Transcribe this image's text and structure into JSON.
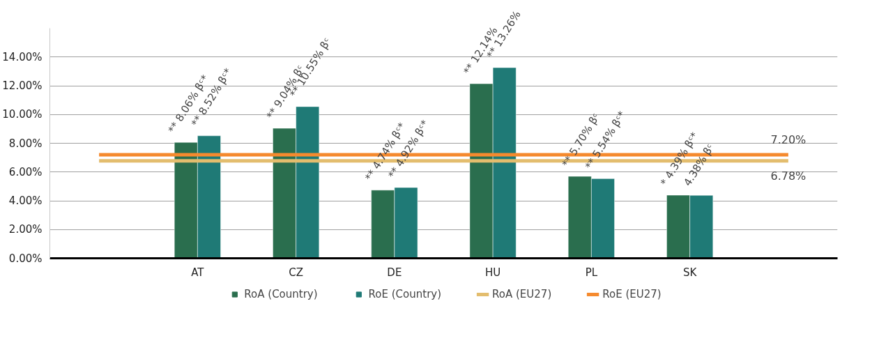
{
  "chart_data": {
    "type": "bar",
    "categories": [
      null,
      "AT",
      "CZ",
      "DE",
      "HU",
      "PL",
      "SK",
      null
    ],
    "series": [
      {
        "name": "RoA (Country)",
        "color": "#2a6e4e",
        "values": [
          null,
          8.06,
          9.04,
          4.74,
          12.14,
          5.7,
          4.39,
          null
        ],
        "value_labels": [
          null,
          "** 8.06% βᶜ*",
          "** 9.04% βᶜ",
          "** 4.74% βᶜ*",
          "** 12.14%",
          "** 5.70% βᶜ",
          "* 4.39% βᶜ*",
          null
        ]
      },
      {
        "name": "RoE (Country)",
        "color": "#1f7a76",
        "values": [
          null,
          8.52,
          10.55,
          4.92,
          13.26,
          5.54,
          4.38,
          null
        ],
        "value_labels": [
          null,
          "** 8.52% βᶜ*",
          "** 10.55% βᶜ",
          "** 4.92% βᶜ*",
          "** 13.26%",
          "** 5.54% βᶜ*",
          "4.38% βᶜ",
          null
        ]
      },
      {
        "name": "RoA (EU27)",
        "type": "line",
        "color": "#e3bd6e",
        "values": [
          6.78,
          6.78,
          6.78,
          6.78,
          6.78,
          6.78,
          6.78,
          6.78
        ],
        "value_labels": [
          null,
          null,
          null,
          null,
          null,
          null,
          null,
          "6.78%"
        ]
      },
      {
        "name": "RoE (EU27)",
        "type": "line",
        "color": "#f58a2e",
        "values": [
          7.2,
          7.2,
          7.2,
          7.2,
          7.2,
          7.2,
          7.2,
          7.2
        ],
        "value_labels": [
          null,
          null,
          null,
          null,
          null,
          null,
          null,
          "7.20%"
        ]
      }
    ],
    "ylim": [
      0,
      16
    ],
    "yticks": [
      {
        "value": 0,
        "label": "0.00%"
      },
      {
        "value": 2,
        "label": "2.00%"
      },
      {
        "value": 4,
        "label": "4.00%"
      },
      {
        "value": 6,
        "label": "6.00%"
      },
      {
        "value": 8,
        "label": "8.00%"
      },
      {
        "value": 10,
        "label": "10.00%"
      },
      {
        "value": 12,
        "label": "12.00%"
      },
      {
        "value": 14,
        "label": "14.00%"
      }
    ],
    "grid": "y",
    "legend": "bottom"
  }
}
